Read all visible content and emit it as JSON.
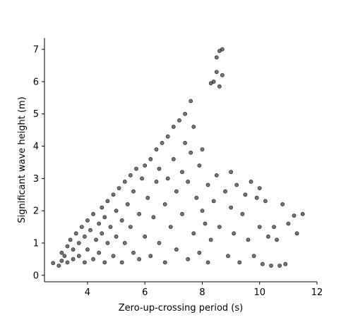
{
  "chart_data": {
    "type": "scatter",
    "title": "",
    "xlabel": "Zero-up-crossing period (s)",
    "ylabel": "Significant wave height (m)",
    "xlim": [
      2.5,
      12
    ],
    "ylim": [
      -0.2,
      7.35
    ],
    "xticks": [
      4,
      6,
      8,
      10,
      12
    ],
    "yticks": [
      0,
      1,
      2,
      3,
      4,
      5,
      6,
      7
    ],
    "grid": false,
    "legend": "none",
    "marker_color": "#000000",
    "marker_alpha": 0.55,
    "series": [
      {
        "points": [
          [
            2.8,
            0.38
          ],
          [
            3.0,
            0.3
          ],
          [
            3.1,
            0.45
          ],
          [
            3.1,
            0.7
          ],
          [
            3.2,
            0.6
          ],
          [
            3.3,
            0.9
          ],
          [
            3.3,
            0.4
          ],
          [
            3.4,
            1.1
          ],
          [
            3.5,
            0.5
          ],
          [
            3.5,
            0.8
          ],
          [
            3.6,
            1.3
          ],
          [
            3.7,
            0.6
          ],
          [
            3.7,
            1.0
          ],
          [
            3.8,
            1.5
          ],
          [
            3.9,
            0.4
          ],
          [
            3.9,
            1.2
          ],
          [
            4.0,
            1.7
          ],
          [
            4.0,
            0.8
          ],
          [
            4.1,
            1.4
          ],
          [
            4.2,
            0.5
          ],
          [
            4.2,
            1.9
          ],
          [
            4.3,
            1.1
          ],
          [
            4.4,
            1.6
          ],
          [
            4.4,
            0.7
          ],
          [
            4.5,
            2.1
          ],
          [
            4.5,
            1.3
          ],
          [
            4.6,
            0.4
          ],
          [
            4.6,
            1.8
          ],
          [
            4.7,
            2.3
          ],
          [
            4.7,
            1.0
          ],
          [
            4.8,
            1.5
          ],
          [
            4.9,
            2.5
          ],
          [
            4.9,
            0.6
          ],
          [
            5.0,
            2.0
          ],
          [
            5.0,
            1.2
          ],
          [
            5.1,
            2.7
          ],
          [
            5.2,
            1.7
          ],
          [
            5.2,
            0.4
          ],
          [
            5.3,
            2.9
          ],
          [
            5.3,
            1.0
          ],
          [
            5.4,
            2.2
          ],
          [
            5.5,
            3.1
          ],
          [
            5.5,
            1.5
          ],
          [
            5.6,
            0.7
          ],
          [
            5.6,
            2.6
          ],
          [
            5.7,
            3.3
          ],
          [
            5.8,
            1.9
          ],
          [
            5.8,
            0.5
          ],
          [
            5.9,
            3.0
          ],
          [
            6.0,
            3.4
          ],
          [
            6.0,
            1.2
          ],
          [
            6.1,
            2.4
          ],
          [
            6.2,
            3.6
          ],
          [
            6.2,
            0.6
          ],
          [
            6.3,
            1.8
          ],
          [
            6.4,
            3.9
          ],
          [
            6.4,
            2.9
          ],
          [
            6.5,
            1.0
          ],
          [
            6.5,
            3.3
          ],
          [
            6.6,
            4.1
          ],
          [
            6.7,
            2.2
          ],
          [
            6.7,
            0.4
          ],
          [
            6.8,
            4.3
          ],
          [
            6.8,
            3.0
          ],
          [
            6.9,
            1.5
          ],
          [
            7.0,
            4.6
          ],
          [
            7.0,
            3.6
          ],
          [
            7.1,
            2.6
          ],
          [
            7.1,
            0.8
          ],
          [
            7.2,
            4.8
          ],
          [
            7.3,
            3.2
          ],
          [
            7.3,
            1.9
          ],
          [
            7.4,
            5.0
          ],
          [
            7.4,
            4.1
          ],
          [
            7.5,
            0.5
          ],
          [
            7.5,
            2.9
          ],
          [
            7.6,
            5.4
          ],
          [
            7.6,
            3.8
          ],
          [
            7.7,
            1.3
          ],
          [
            7.7,
            4.6
          ],
          [
            7.8,
            2.4
          ],
          [
            7.9,
            3.4
          ],
          [
            7.9,
            0.7
          ],
          [
            8.0,
            2.0
          ],
          [
            8.0,
            3.9
          ],
          [
            8.1,
            1.6
          ],
          [
            8.2,
            2.8
          ],
          [
            8.2,
            0.4
          ],
          [
            8.3,
            1.1
          ],
          [
            8.3,
            5.95
          ],
          [
            8.4,
            2.3
          ],
          [
            8.4,
            6.0
          ],
          [
            8.5,
            6.3
          ],
          [
            8.5,
            3.1
          ],
          [
            8.5,
            6.75
          ],
          [
            8.6,
            6.95
          ],
          [
            8.6,
            5.85
          ],
          [
            8.6,
            1.5
          ],
          [
            8.7,
            7.0
          ],
          [
            8.7,
            6.2
          ],
          [
            8.8,
            2.6
          ],
          [
            8.9,
            0.6
          ],
          [
            9.0,
            2.1
          ],
          [
            9.0,
            3.2
          ],
          [
            9.1,
            1.3
          ],
          [
            9.2,
            2.8
          ],
          [
            9.3,
            0.4
          ],
          [
            9.4,
            1.9
          ],
          [
            9.5,
            2.5
          ],
          [
            9.6,
            1.1
          ],
          [
            9.7,
            2.9
          ],
          [
            9.8,
            0.6
          ],
          [
            9.9,
            2.4
          ],
          [
            10.0,
            2.7
          ],
          [
            10.0,
            1.5
          ],
          [
            10.1,
            0.35
          ],
          [
            10.2,
            2.3
          ],
          [
            10.3,
            1.2
          ],
          [
            10.4,
            0.3
          ],
          [
            10.5,
            1.5
          ],
          [
            10.6,
            1.1
          ],
          [
            10.7,
            0.3
          ],
          [
            10.8,
            2.2
          ],
          [
            10.9,
            0.35
          ],
          [
            11.0,
            1.6
          ],
          [
            11.2,
            1.85
          ],
          [
            11.3,
            1.3
          ],
          [
            11.5,
            1.9
          ]
        ]
      }
    ]
  }
}
